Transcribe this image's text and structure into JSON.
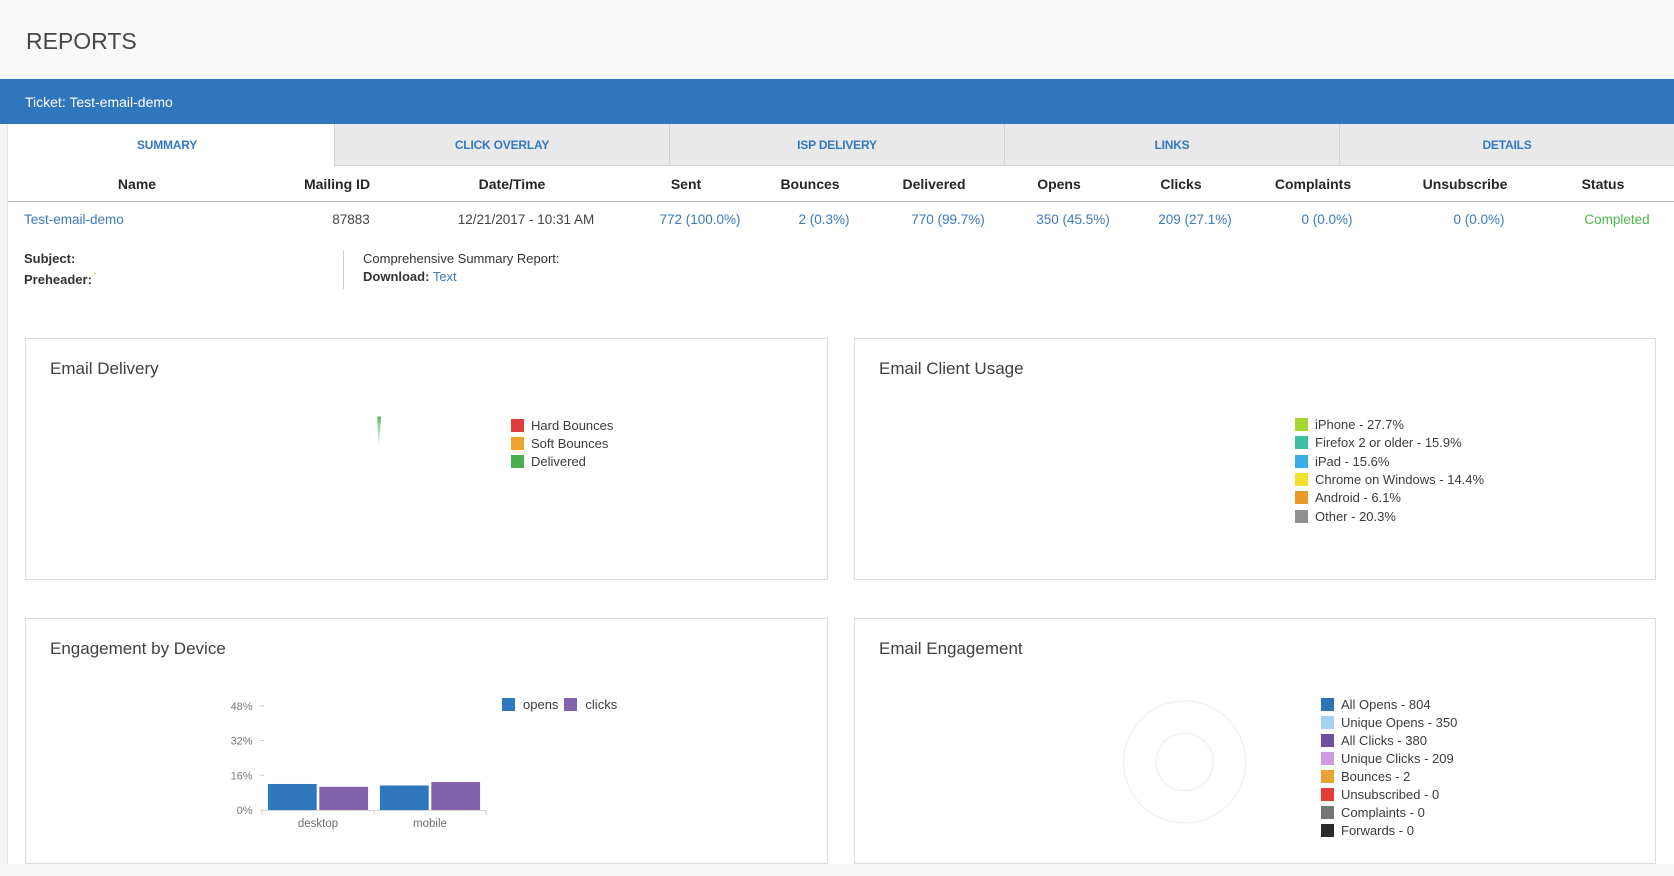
{
  "page_title": "REPORTS",
  "ticket_bar": {
    "label": "Ticket: Test-email-demo"
  },
  "tabs": [
    {
      "label": "SUMMARY",
      "active": true
    },
    {
      "label": "CLICK OVERLAY",
      "active": false
    },
    {
      "label": "ISP DELIVERY",
      "active": false
    },
    {
      "label": "LINKS",
      "active": false
    },
    {
      "label": "DETAILS",
      "active": false
    }
  ],
  "table": {
    "columns": [
      "Name",
      "Mailing ID",
      "Date/Time",
      "Sent",
      "Bounces",
      "Delivered",
      "Opens",
      "Clicks",
      "Complaints",
      "Unsubscribe",
      "Status"
    ],
    "row": {
      "name": "Test-email-demo",
      "mailing_id": "87883",
      "date_time": "12/21/2017 - 10:31 AM",
      "sent": "772 (100.0%)",
      "bounces": "2 (0.3%)",
      "delivered": "770 (99.7%)",
      "opens": "350 (45.5%)",
      "clicks": "209 (27.1%)",
      "complaints": "0 (0.0%)",
      "unsubscribe": "0 (0.0%)",
      "status": "Completed"
    }
  },
  "meta": {
    "subject_label": "Subject:",
    "preheader_label": "Preheader:",
    "preheader_value": "'",
    "report_label": "Comprehensive Summary Report:",
    "download_label": "Download:",
    "download_link": "Text"
  },
  "colors": {
    "accent_blue": "#3076bd",
    "link_blue": "#3d7ab9",
    "status_green": "#4cb54c"
  },
  "chart_data": [
    {
      "id": "email_delivery",
      "type": "pie",
      "title": "Email Delivery",
      "legend_position": "right",
      "legend": [
        {
          "label": "Hard Bounces",
          "color": "#dd3c3c"
        },
        {
          "label": "Soft Bounces",
          "color": "#eda22d"
        },
        {
          "label": "Delivered",
          "color": "#4bae53"
        }
      ],
      "visible_wedge": {
        "color": "#44ac55",
        "percent": 1.6,
        "start_angle_deg": -2.1,
        "end_angle_deg": 4.6
      }
    },
    {
      "id": "email_client_usage",
      "type": "pie",
      "title": "Email Client Usage",
      "legend_position": "right",
      "pie_rendered": false,
      "legend": [
        {
          "label": "iPhone - 27.7%",
          "value": 27.7,
          "color": "#a6d631"
        },
        {
          "label": "Firefox 2 or older - 15.9%",
          "value": 15.9,
          "color": "#3dbfa2"
        },
        {
          "label": "iPad - 15.6%",
          "value": 15.6,
          "color": "#38ade6"
        },
        {
          "label": "Chrome on Windows - 14.4%",
          "value": 14.4,
          "color": "#f0e130"
        },
        {
          "label": "Android - 6.1%",
          "value": 6.1,
          "color": "#ea9a28"
        },
        {
          "label": "Other - 20.3%",
          "value": 20.3,
          "color": "#919191"
        }
      ]
    },
    {
      "id": "engagement_by_device",
      "type": "bar",
      "title": "Engagement by Device",
      "categories": [
        "desktop",
        "mobile"
      ],
      "series": [
        {
          "name": "opens",
          "color": "#3078be",
          "values": [
            12.0,
            11.3
          ]
        },
        {
          "name": "clicks",
          "color": "#8262ac",
          "values": [
            10.7,
            12.9
          ]
        }
      ],
      "y_ticks": [
        "0%",
        "16%",
        "32%",
        "48%"
      ],
      "y_tick_values": [
        0,
        16,
        32,
        48
      ],
      "ylim": [
        0,
        55
      ],
      "grid": false,
      "legend_position": "top"
    },
    {
      "id": "email_engagement",
      "type": "donut",
      "title": "Email Engagement",
      "legend_position": "right",
      "rendered": "outline-only",
      "legend": [
        {
          "label": "All Opens - 804",
          "value": 804,
          "color": "#2d73b5"
        },
        {
          "label": "Unique Opens - 350",
          "value": 350,
          "color": "#a3d3f1"
        },
        {
          "label": "All Clicks - 380",
          "value": 380,
          "color": "#6b4fa1"
        },
        {
          "label": "Unique Clicks - 209",
          "value": 209,
          "color": "#cf9ade"
        },
        {
          "label": "Bounces - 2",
          "value": 2,
          "color": "#eba12f"
        },
        {
          "label": "Unsubscribed - 0",
          "value": 0,
          "color": "#e33b36"
        },
        {
          "label": "Complaints - 0",
          "value": 0,
          "color": "#757575"
        },
        {
          "label": "Forwards - 0",
          "value": 0,
          "color": "#2a2a2a"
        }
      ]
    }
  ]
}
